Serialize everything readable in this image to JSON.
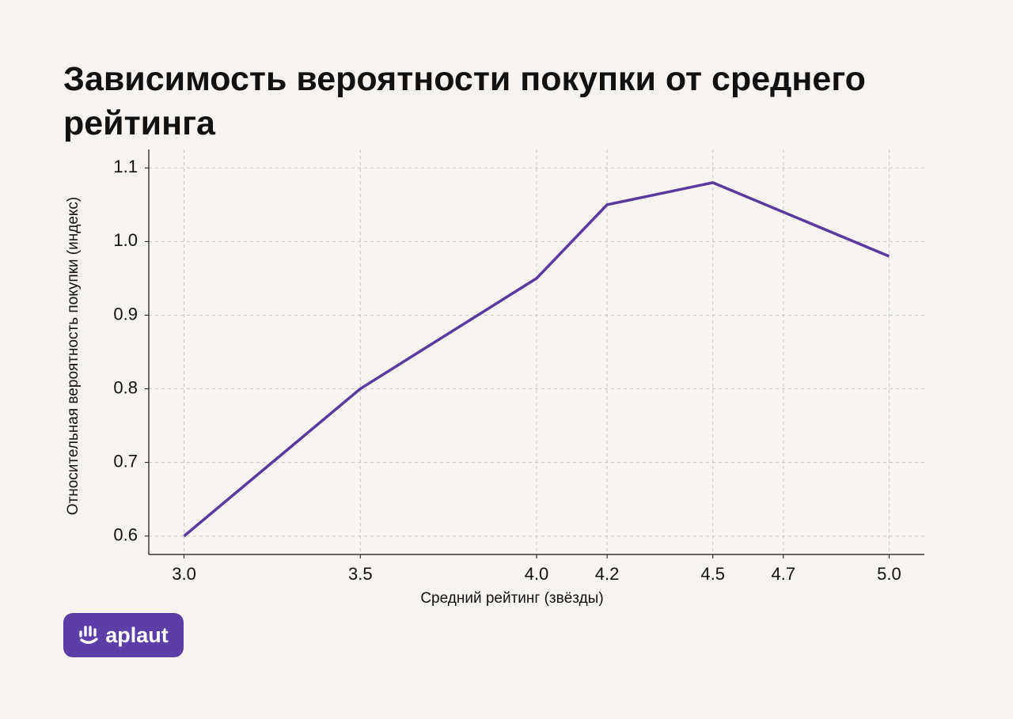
{
  "chart_data": {
    "type": "line",
    "title": "Зависимость вероятности покупки от среднего рейтинга",
    "x_label": "Средний рейтинг (звёзды)",
    "y_label": "Относительная вероятность покупки (индекс)",
    "x": [
      3.0,
      3.5,
      4.0,
      4.2,
      4.5,
      5.0
    ],
    "values": [
      0.6,
      0.8,
      0.95,
      1.05,
      1.08,
      0.98
    ],
    "color": "#5b3a9e",
    "xlim": [
      2.9,
      5.1
    ],
    "xticks": [
      {
        "value": 3.0,
        "label": "3.0"
      },
      3.5,
      {
        "value": 4.0,
        "label": "4.0"
      },
      4.2,
      4.5,
      4.7,
      {
        "value": 5.0,
        "label": "5.0"
      }
    ],
    "ylim": [
      0.575,
      1.125
    ],
    "yticks": [
      0.6,
      0.7,
      0.8,
      0.9,
      {
        "value": 1.0,
        "label": "1.0"
      },
      1.1
    ],
    "grid": true
  },
  "logo": {
    "text": "aplaut"
  }
}
